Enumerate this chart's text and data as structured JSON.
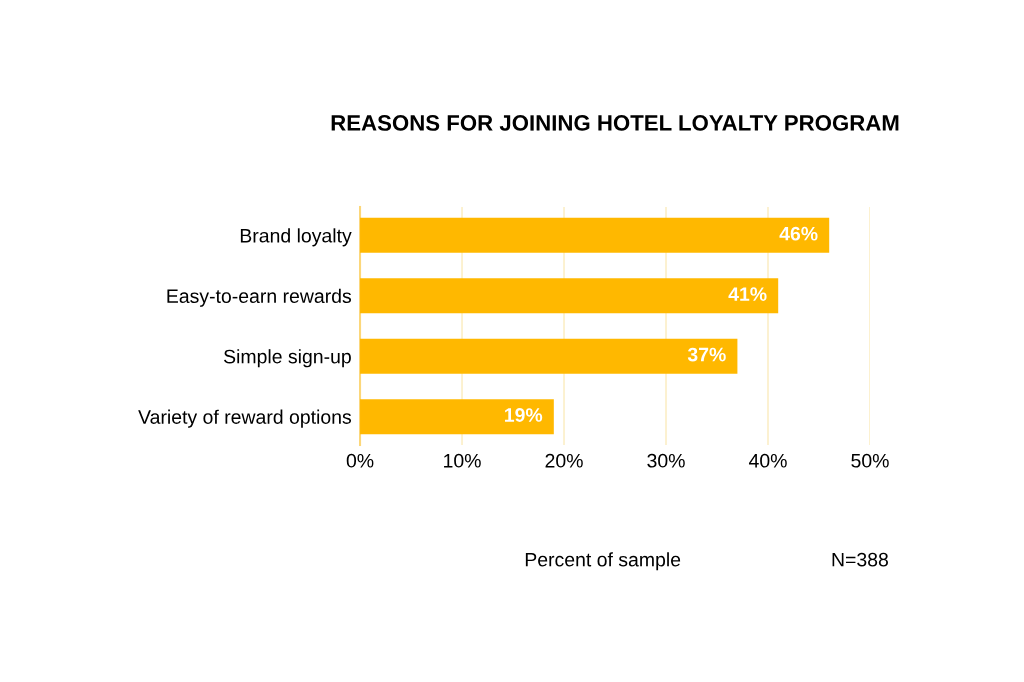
{
  "chart_data": {
    "type": "bar",
    "orientation": "horizontal",
    "title": "REASONS FOR JOINING HOTEL LOYALTY PROGRAM",
    "categories": [
      "Brand loyalty",
      "Easy-to-earn rewards",
      "Simple sign-up",
      "Variety of reward options"
    ],
    "values": [
      46,
      41,
      37,
      19
    ],
    "color": "#ffb800",
    "value_labels": [
      "46%",
      "41%",
      "37%",
      "19%"
    ],
    "xlim": [
      0,
      50
    ],
    "xticks": [
      {
        "value": 0,
        "label": "0%"
      },
      {
        "value": 10,
        "label": "10%"
      },
      {
        "value": 20,
        "label": "20%"
      },
      {
        "value": 30,
        "label": "30%"
      },
      {
        "value": 40,
        "label": "40%"
      },
      {
        "value": 50,
        "label": "50%"
      }
    ],
    "grid": "x",
    "annotations": [
      "Percent of sample",
      "N=388"
    ]
  }
}
